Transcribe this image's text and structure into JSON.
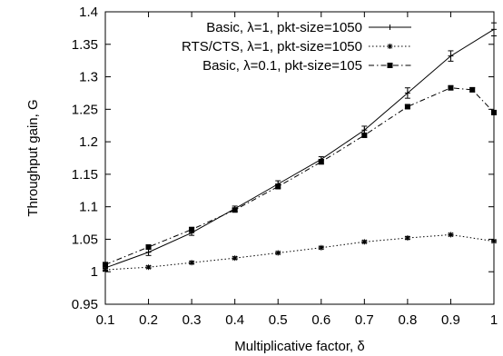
{
  "chart_data": {
    "type": "line",
    "title": "",
    "xlabel": "Multiplicative factor, δ",
    "ylabel": "Throughput gain, G",
    "xlim": [
      0.1,
      1.0
    ],
    "ylim": [
      0.95,
      1.4
    ],
    "xticks": [
      "0.1",
      "0.2",
      "0.3",
      "0.4",
      "0.5",
      "0.6",
      "0.7",
      "0.8",
      "0.9",
      "1"
    ],
    "yticks": [
      "0.95",
      "1",
      "1.05",
      "1.1",
      "1.15",
      "1.2",
      "1.25",
      "1.3",
      "1.35",
      "1.4"
    ],
    "grid": false,
    "legend_position": "top-right",
    "series": [
      {
        "name": "Basic, λ=1, pkt-size=1050",
        "line_style": "solid",
        "marker": "plus",
        "x": [
          0.1,
          0.2,
          0.3,
          0.4,
          0.5,
          0.6,
          0.7,
          0.8,
          0.9,
          1.0
        ],
        "y": [
          1.006,
          1.03,
          1.06,
          1.097,
          1.135,
          1.173,
          1.218,
          1.275,
          1.332,
          1.373
        ],
        "err": [
          0.004,
          0.005,
          0.004,
          0.004,
          0.005,
          0.004,
          0.006,
          0.008,
          0.008,
          0.01
        ]
      },
      {
        "name": "RTS/CTS, λ=1, pkt-size=1050",
        "line_style": "dotted",
        "marker": "star",
        "x": [
          0.1,
          0.2,
          0.3,
          0.4,
          0.5,
          0.6,
          0.7,
          0.8,
          0.9,
          1.0
        ],
        "y": [
          1.003,
          1.007,
          1.014,
          1.021,
          1.029,
          1.037,
          1.046,
          1.052,
          1.057,
          1.047
        ],
        "err": [
          0.002,
          0.002,
          0.002,
          0.002,
          0.002,
          0.002,
          0.002,
          0.002,
          0.002,
          0.002
        ]
      },
      {
        "name": "Basic, λ=0.1, pkt-size=105",
        "line_style": "dashdot",
        "marker": "square",
        "x": [
          0.1,
          0.2,
          0.3,
          0.4,
          0.5,
          0.6,
          0.7,
          0.8,
          0.9,
          0.95,
          1.0
        ],
        "y": [
          1.011,
          1.038,
          1.065,
          1.095,
          1.131,
          1.169,
          1.21,
          1.254,
          1.283,
          1.28,
          1.245
        ],
        "err": [
          0.003,
          0.003,
          0.003,
          0.003,
          0.003,
          0.003,
          0.003,
          0.003,
          0.003,
          0.003,
          0.003
        ]
      }
    ]
  }
}
